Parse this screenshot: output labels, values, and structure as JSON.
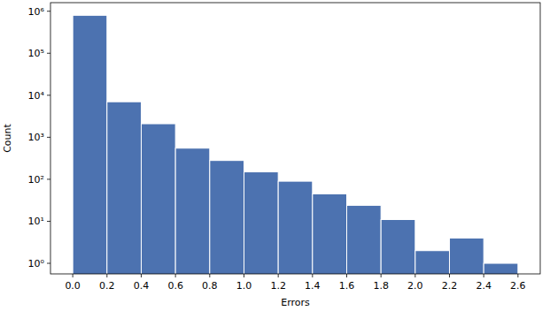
{
  "chart_data": {
    "type": "histogram",
    "x_label": "Errors",
    "y_label": "Count",
    "bins": [
      0.0,
      0.2,
      0.4,
      0.6,
      0.8,
      1.0,
      1.2,
      1.4,
      1.6,
      1.8,
      2.0,
      2.2,
      2.4,
      2.6
    ],
    "counts": [
      800000,
      7000,
      2100,
      550,
      280,
      150,
      90,
      45,
      24,
      11,
      2,
      4,
      1
    ],
    "color": "#4c72b0",
    "log": "y",
    "xlim": [
      -0.13,
      2.73
    ],
    "xticks": [
      {
        "value": 0,
        "label": "0.0"
      },
      0.2,
      0.4,
      0.6,
      0.8,
      {
        "value": 1,
        "label": "1.0"
      },
      1.2,
      1.4,
      1.6,
      1.8,
      {
        "value": 2,
        "label": "2.0"
      },
      2.2,
      2.4,
      2.6
    ],
    "ylim": [
      0.56,
      1600000
    ],
    "yticks": [
      {
        "value": 1,
        "label": "10⁰"
      },
      {
        "value": 10,
        "label": "10¹"
      },
      {
        "value": 100,
        "label": "10²"
      },
      {
        "value": 1000,
        "label": "10³"
      },
      {
        "value": 10000,
        "label": "10⁴"
      },
      {
        "value": 100000,
        "label": "10⁵"
      },
      {
        "value": 1000000,
        "label": "10⁶"
      }
    ],
    "grid": false
  }
}
